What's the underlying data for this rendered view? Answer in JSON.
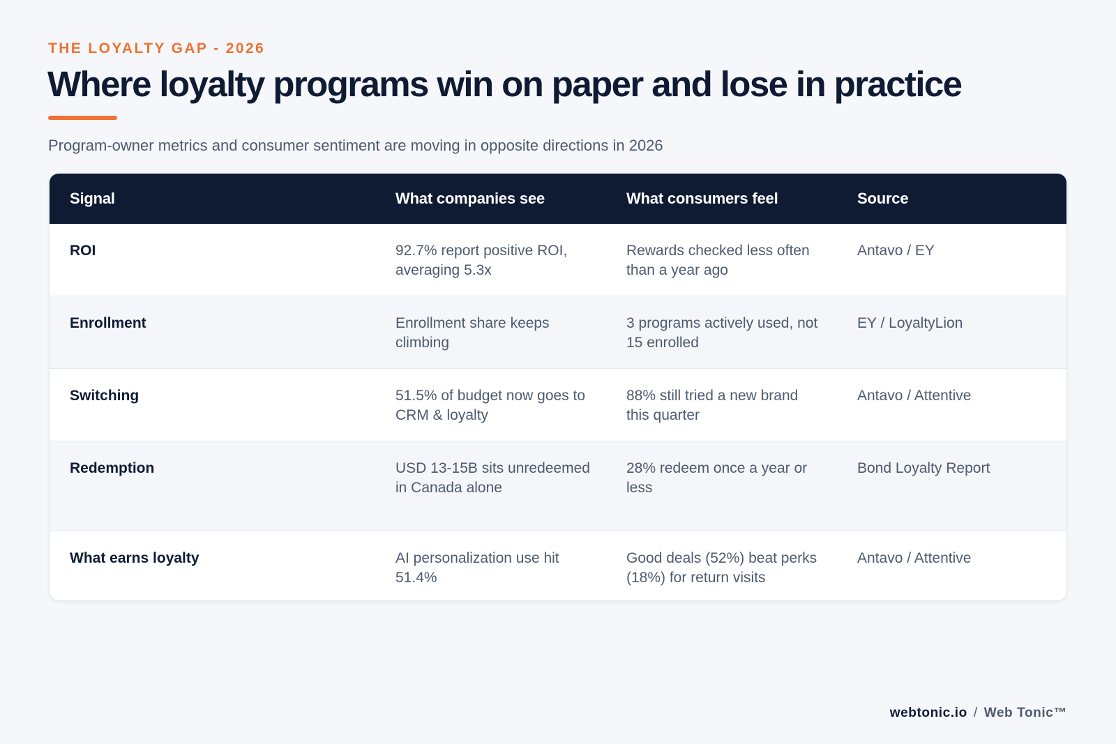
{
  "header": {
    "eyebrow": "THE LOYALTY GAP - 2026",
    "title": "Where loyalty programs win on paper and lose in practice",
    "subtitle": "Program-owner metrics and consumer sentiment are moving in opposite directions in 2026"
  },
  "table": {
    "columns": [
      "Signal",
      "What companies see",
      "What consumers feel",
      "Source"
    ],
    "rows": [
      [
        "ROI",
        "92.7% report positive ROI, averaging 5.3x",
        "Rewards checked less often than a year ago",
        "Antavo / EY"
      ],
      [
        "Enrollment",
        "Enrollment share keeps climbing",
        "3 programs actively used, not 15 enrolled",
        "EY / LoyaltyLion"
      ],
      [
        "Switching",
        "51.5% of budget now goes to CRM & loyalty",
        "88% still tried a new brand this quarter",
        "Antavo / Attentive"
      ],
      [
        "Redemption",
        "USD 13-15B sits unredeemed in Canada alone",
        "28% redeem once a year or less",
        "Bond Loyalty Report"
      ],
      [
        "What earns loyalty",
        "AI personalization use hit 51.4%",
        "Good deals (52%) beat perks (18%) for return visits",
        "Antavo / Attentive"
      ]
    ]
  },
  "footer": {
    "domain": "webtonic.io",
    "separator": "/",
    "brand": "Web Tonic™"
  },
  "colors": {
    "accent": "#ef7233",
    "navy": "#0f1b33",
    "muted_text": "#4e5a6e",
    "background": "#f5f7fa"
  }
}
